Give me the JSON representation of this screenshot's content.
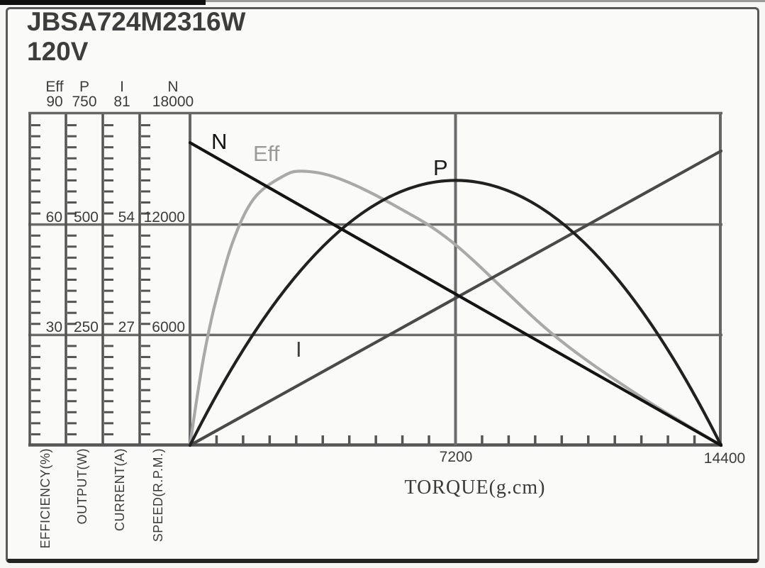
{
  "page": {
    "title": "JBSA724M2316W",
    "voltage": "120V"
  },
  "chart_data": {
    "type": "line",
    "title": "JBSA724M2316W",
    "subtitle": "120V",
    "xlabel": "TORQUE(g.cm)",
    "x_range": [
      0,
      14400
    ],
    "x_tick_labels": [
      "7200",
      "14400"
    ],
    "x_minor_divisions": 20,
    "grid": true,
    "axes": [
      {
        "name": "Eff",
        "title": "EFFICIENCY(%)",
        "max": 90,
        "tick_labels": [
          "90",
          "60",
          "30"
        ]
      },
      {
        "name": "P",
        "title": "OUTPUT(W)",
        "max": 750,
        "tick_labels": [
          "750",
          "500",
          "250"
        ]
      },
      {
        "name": "I",
        "title": "CURRENT(A)",
        "max": 81,
        "tick_labels": [
          "81",
          "54",
          "27"
        ]
      },
      {
        "name": "N",
        "title": "SPEED(R.P.M.)",
        "max": 18000,
        "tick_labels": [
          "18000",
          "12000",
          "6000"
        ]
      }
    ],
    "series": [
      {
        "name": "N",
        "axis": "N",
        "shape": "linear",
        "color": "#141414",
        "points": [
          [
            0,
            16450
          ],
          [
            14400,
            0
          ]
        ]
      },
      {
        "name": "Eff",
        "axis": "Eff",
        "shape": "smooth",
        "color": "#a9a9a9",
        "points": [
          [
            0,
            0
          ],
          [
            190,
            13
          ],
          [
            390,
            25
          ],
          [
            670,
            38
          ],
          [
            1150,
            55
          ],
          [
            1730,
            67
          ],
          [
            2500,
            73
          ],
          [
            3050,
            74.5
          ],
          [
            4040,
            72.5
          ],
          [
            5580,
            65
          ],
          [
            7200,
            54.5
          ],
          [
            9800,
            30.5
          ],
          [
            12100,
            14
          ],
          [
            14400,
            0
          ]
        ]
      },
      {
        "name": "P",
        "axis": "P",
        "shape": "parabola",
        "color": "#212121",
        "points": [
          [
            0,
            0
          ],
          [
            7200,
            600
          ],
          [
            14400,
            0
          ]
        ]
      },
      {
        "name": "I",
        "axis": "I",
        "shape": "linear",
        "color": "#4a4a4a",
        "points": [
          [
            0,
            0
          ],
          [
            14400,
            72
          ]
        ]
      }
    ]
  }
}
